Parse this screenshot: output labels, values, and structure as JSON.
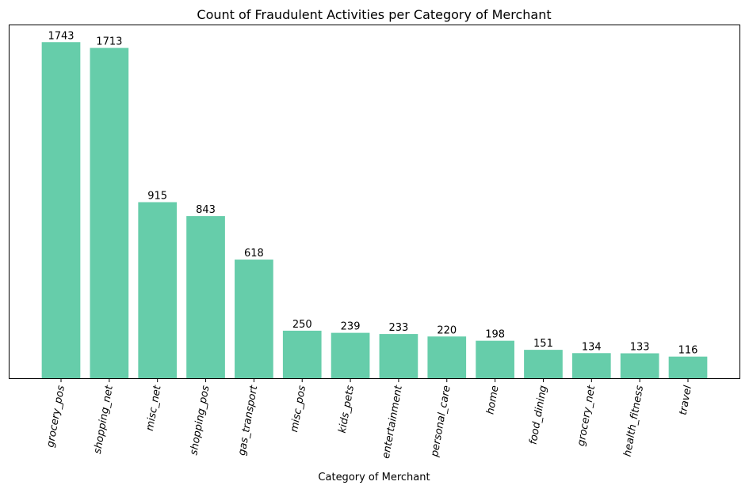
{
  "chart_data": {
    "type": "bar",
    "title": "Count of Fraudulent Activities per Category of Merchant",
    "xlabel": "Category of Merchant",
    "ylabel": "",
    "categories": [
      "grocery_pos",
      "shopping_net",
      "misc_net",
      "shopping_pos",
      "gas_transport",
      "misc_pos",
      "kids_pets",
      "entertainment",
      "personal_care",
      "home",
      "food_dining",
      "grocery_net",
      "health_fitness",
      "travel"
    ],
    "values": [
      1743,
      1713,
      915,
      843,
      618,
      250,
      239,
      233,
      220,
      198,
      151,
      134,
      133,
      116
    ],
    "ylim": [
      0,
      1830
    ],
    "bar_color": "#66cdaa",
    "y_ticks_visible": false,
    "grid": false,
    "legend": "none"
  }
}
